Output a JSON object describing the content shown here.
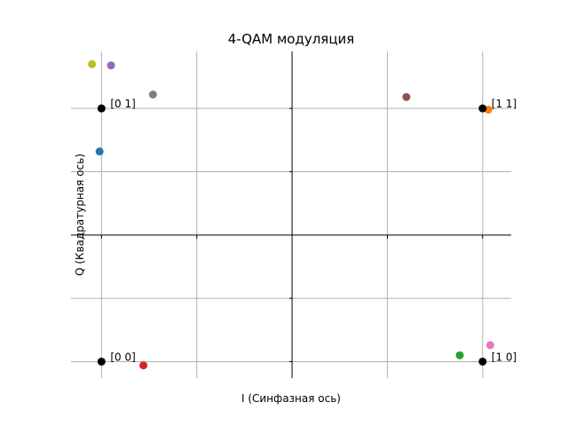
{
  "chart_data": {
    "type": "scatter",
    "title": "4-QAM модуляция",
    "xlabel": "I (Синфазная ось)",
    "ylabel": "Q (Квадратурная ось)",
    "xlim": [
      -1.16,
      1.15
    ],
    "ylim": [
      -1.13,
      1.45
    ],
    "xgrid": [
      -1,
      -0.5,
      0,
      0.5,
      1
    ],
    "ygrid": [
      -1,
      -0.5,
      0,
      0.5,
      1
    ],
    "grid": true,
    "ideal_points": [
      {
        "label": "[0 1]",
        "x": -1,
        "y": 1,
        "color": "#000000"
      },
      {
        "label": "[1 1]",
        "x": 1,
        "y": 1,
        "color": "#000000"
      },
      {
        "label": "[0 0]",
        "x": -1,
        "y": -1,
        "color": "#000000"
      },
      {
        "label": "[1 0]",
        "x": 1,
        "y": -1,
        "color": "#000000"
      }
    ],
    "received_points": [
      {
        "x": -1.01,
        "y": 0.66,
        "color": "#1f77b4"
      },
      {
        "x": 1.03,
        "y": 0.99,
        "color": "#ff7f0e"
      },
      {
        "x": 0.88,
        "y": -0.95,
        "color": "#2ca02c"
      },
      {
        "x": -0.78,
        "y": -1.03,
        "color": "#d62728"
      },
      {
        "x": -0.95,
        "y": 1.34,
        "color": "#9467bd"
      },
      {
        "x": 0.6,
        "y": 1.09,
        "color": "#8c564b"
      },
      {
        "x": 1.04,
        "y": -0.87,
        "color": "#e377c2"
      },
      {
        "x": -0.73,
        "y": 1.11,
        "color": "#7f7f7f"
      },
      {
        "x": -1.05,
        "y": 1.35,
        "color": "#bcbd22"
      }
    ]
  }
}
